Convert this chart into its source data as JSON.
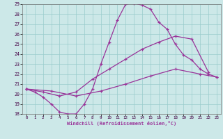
{
  "xlabel": "Windchill (Refroidissement éolien,°C)",
  "xlim": [
    -0.5,
    23.5
  ],
  "ylim": [
    18,
    29
  ],
  "xticks": [
    0,
    1,
    2,
    3,
    4,
    5,
    6,
    7,
    8,
    9,
    10,
    11,
    12,
    13,
    14,
    15,
    16,
    17,
    18,
    19,
    20,
    21,
    22,
    23
  ],
  "yticks": [
    18,
    19,
    20,
    21,
    22,
    23,
    24,
    25,
    26,
    27,
    28,
    29
  ],
  "bg_color": "#cce8e8",
  "grid_color": "#99cccc",
  "line_color": "#993399",
  "line1_x": [
    0,
    1,
    2,
    3,
    4,
    5,
    6,
    7,
    8,
    9,
    10,
    11,
    12,
    13,
    14,
    15,
    16,
    17,
    18,
    19,
    20,
    21,
    22,
    23
  ],
  "line1_y": [
    20.5,
    20.2,
    19.7,
    19.0,
    18.2,
    18.0,
    18.0,
    19.0,
    20.5,
    23.0,
    25.2,
    27.4,
    29.0,
    29.1,
    28.9,
    28.5,
    27.2,
    26.5,
    25.0,
    23.9,
    23.4,
    22.5,
    22.0,
    21.7
  ],
  "line2_x": [
    0,
    2,
    4,
    6,
    8,
    10,
    12,
    14,
    16,
    18,
    20,
    22
  ],
  "line2_y": [
    20.5,
    20.2,
    19.8,
    20.2,
    21.5,
    22.5,
    23.5,
    24.5,
    25.2,
    25.8,
    25.5,
    22.2
  ],
  "line3_x": [
    0,
    3,
    6,
    9,
    12,
    15,
    18,
    21,
    23
  ],
  "line3_y": [
    20.5,
    20.3,
    19.8,
    20.3,
    21.0,
    21.8,
    22.5,
    22.0,
    21.7
  ]
}
